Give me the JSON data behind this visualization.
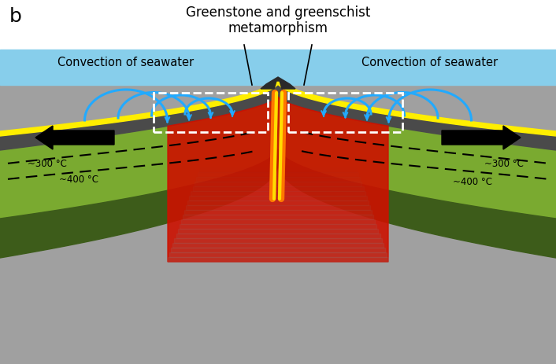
{
  "title": "Greenstone and greenschist\nmetamorphism",
  "label_b": "b",
  "label_left": "Convection of seawater",
  "label_right": "Convection of seawater",
  "label_300_left": "~300 °C",
  "label_400_left": "~400 °C",
  "label_300_right": "~300 °C",
  "label_400_right": "~400 °C",
  "white_bg": "#ffffff",
  "gray_bottom": "#a0a0a0",
  "seawater_color": "#87ceeb",
  "yellow_color": "#ffee00",
  "dark_gray": "#4a4a4a",
  "green_mid": "#5a7a2a",
  "green_light": "#7aaa30",
  "green_dark": "#3d5c1a",
  "red_hot": "#cc1100",
  "orange_lava": "#ff7700",
  "yellow_lava": "#ffdd00",
  "blue_arc": "#22aaff",
  "black": "#000000",
  "white": "#ffffff"
}
